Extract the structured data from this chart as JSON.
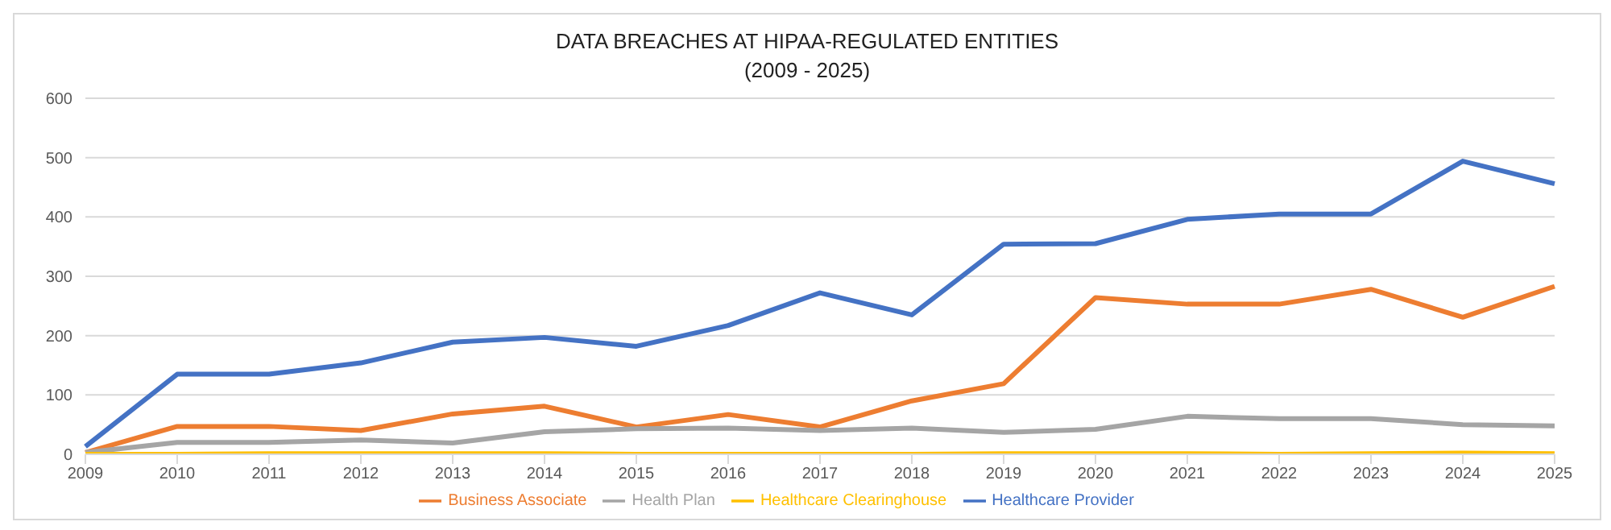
{
  "chart_data": {
    "type": "line",
    "title": "DATA BREACHES AT HIPAA-REGULATED ENTITIES",
    "subtitle": "(2009 - 2025)",
    "categories": [
      "2009",
      "2010",
      "2011",
      "2012",
      "2013",
      "2014",
      "2015",
      "2016",
      "2017",
      "2018",
      "2019",
      "2020",
      "2021",
      "2022",
      "2023",
      "2024",
      "2025"
    ],
    "series": [
      {
        "name": "Healthcare Provider",
        "color": "#4472c4",
        "values": [
          13,
          135,
          135,
          154,
          189,
          197,
          182,
          217,
          272,
          235,
          354,
          355,
          396,
          405,
          405,
          494,
          456
        ]
      },
      {
        "name": "Business Associate",
        "color": "#ed7d31",
        "values": [
          3,
          47,
          47,
          40,
          68,
          81,
          46,
          67,
          46,
          90,
          119,
          264,
          253,
          253,
          278,
          231,
          283
        ]
      },
      {
        "name": "Health Plan",
        "color": "#a5a5a5",
        "values": [
          3,
          20,
          20,
          24,
          19,
          38,
          43,
          44,
          40,
          44,
          37,
          42,
          64,
          60,
          60,
          50,
          48
        ]
      },
      {
        "name": "Healthcare Clearinghouse",
        "color": "#ffc000",
        "values": [
          0,
          0,
          1,
          1,
          1,
          1,
          0,
          0,
          0,
          0,
          1,
          1,
          1,
          0,
          1,
          2,
          1
        ]
      }
    ],
    "ylim": [
      0,
      600
    ],
    "yticks": [
      0,
      100,
      200,
      300,
      400,
      500,
      600
    ],
    "grid": "y",
    "legend": "bottom",
    "marker": "none",
    "line_style": "solid"
  }
}
